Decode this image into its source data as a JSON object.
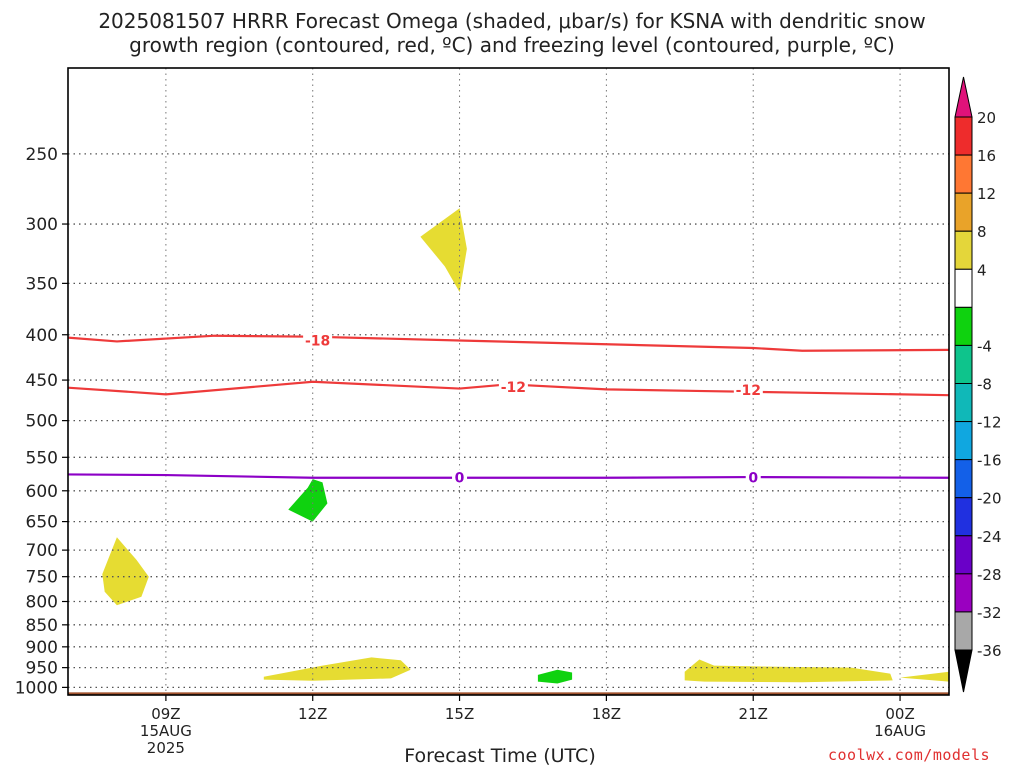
{
  "title_line1": "2025081507 HRRR Forecast Omega (shaded, μbar/s) for KSNA with dendritic snow",
  "title_line2": "growth region (contoured, red, ºC) and freezing level (contoured, purple, ºC)",
  "xlabel": "Forecast Time (UTC)",
  "watermark": "coolwx.com/models",
  "chart_data": {
    "type": "contour",
    "y_axis": {
      "label": "",
      "scale": "log",
      "inverted": true,
      "ylim": [
        1020,
        200
      ],
      "ticks": [
        250,
        300,
        350,
        400,
        450,
        500,
        550,
        600,
        650,
        700,
        750,
        800,
        850,
        900,
        950,
        1000
      ]
    },
    "x_axis": {
      "label": "Forecast Time (UTC)",
      "xlim_hours": [
        7,
        25
      ],
      "ticks": [
        {
          "h": 9,
          "lines": [
            "09Z",
            "15AUG",
            "2025"
          ]
        },
        {
          "h": 12,
          "lines": [
            "12Z"
          ]
        },
        {
          "h": 15,
          "lines": [
            "15Z"
          ]
        },
        {
          "h": 18,
          "lines": [
            "18Z"
          ]
        },
        {
          "h": 21,
          "lines": [
            "21Z"
          ]
        },
        {
          "h": 24,
          "lines": [
            "00Z",
            "16AUG"
          ]
        }
      ]
    },
    "grid": true,
    "contours": [
      {
        "name": "-18",
        "color": "#ee3a3a",
        "labels": [
          {
            "h": 12.1,
            "p": 406,
            "text": "-18"
          }
        ],
        "points": [
          [
            7,
            403
          ],
          [
            8,
            407
          ],
          [
            10,
            401
          ],
          [
            12,
            402
          ],
          [
            15,
            406
          ],
          [
            18,
            410
          ],
          [
            21,
            414
          ],
          [
            22,
            417
          ],
          [
            25,
            416
          ]
        ]
      },
      {
        "name": "-12",
        "color": "#ee3a3a",
        "labels": [
          {
            "h": 16.1,
            "p": 458,
            "text": "-12"
          },
          {
            "h": 20.9,
            "p": 462,
            "text": "-12"
          }
        ],
        "points": [
          [
            7,
            459
          ],
          [
            9,
            467
          ],
          [
            12,
            452
          ],
          [
            15,
            460
          ],
          [
            16,
            455
          ],
          [
            18,
            461
          ],
          [
            20,
            463
          ],
          [
            22,
            465
          ],
          [
            25,
            468
          ]
        ]
      },
      {
        "name": "0",
        "color": "#8c00c6",
        "labels": [
          {
            "h": 15,
            "p": 580,
            "text": "0"
          },
          {
            "h": 21,
            "p": 580,
            "text": "0"
          }
        ],
        "points": [
          [
            7,
            575
          ],
          [
            9,
            576
          ],
          [
            12,
            580
          ],
          [
            15,
            580
          ],
          [
            18,
            580
          ],
          [
            21,
            579
          ],
          [
            25,
            580
          ]
        ]
      }
    ],
    "shaded_regions": [
      {
        "value": "4 to 8",
        "color": "#e6dc32",
        "points": [
          [
            14.2,
            310
          ],
          [
            15.0,
            288
          ],
          [
            15.15,
            320
          ],
          [
            15.0,
            358
          ],
          [
            14.7,
            335
          ]
        ]
      },
      {
        "value": "4 to 8",
        "color": "#e6dc32",
        "points": [
          [
            7.7,
            745
          ],
          [
            8.0,
            677
          ],
          [
            8.4,
            718
          ],
          [
            8.65,
            750
          ],
          [
            8.5,
            790
          ],
          [
            8.0,
            808
          ],
          [
            7.75,
            780
          ]
        ]
      },
      {
        "value": "-8 to -4",
        "color": "#0fd20f",
        "points": [
          [
            11.5,
            630
          ],
          [
            11.9,
            595
          ],
          [
            12.0,
            582
          ],
          [
            12.2,
            587
          ],
          [
            12.3,
            620
          ],
          [
            12.0,
            650
          ]
        ]
      },
      {
        "value": "4 to 8",
        "color": "#e6dc32",
        "points": [
          [
            11.0,
            973
          ],
          [
            12.2,
            945
          ],
          [
            13.2,
            925
          ],
          [
            13.8,
            932
          ],
          [
            14.0,
            955
          ],
          [
            13.6,
            977
          ],
          [
            12.0,
            983
          ],
          [
            11.0,
            980
          ]
        ]
      },
      {
        "value": "-8 to -4",
        "color": "#0fd20f",
        "points": [
          [
            16.6,
            968
          ],
          [
            17.0,
            955
          ],
          [
            17.3,
            962
          ],
          [
            17.3,
            980
          ],
          [
            17.0,
            990
          ],
          [
            16.6,
            985
          ]
        ]
      },
      {
        "value": "4 to 8",
        "color": "#e6dc32",
        "points": [
          [
            19.6,
            960
          ],
          [
            19.9,
            930
          ],
          [
            20.2,
            945
          ],
          [
            21.5,
            948
          ],
          [
            23.0,
            950
          ],
          [
            23.8,
            965
          ],
          [
            23.85,
            982
          ],
          [
            22.0,
            987
          ],
          [
            20.0,
            985
          ],
          [
            19.6,
            982
          ]
        ]
      },
      {
        "value": "4 to 8",
        "color": "#e6dc32",
        "points": [
          [
            24.0,
            975
          ],
          [
            25.0,
            960
          ],
          [
            25.0,
            985
          ]
        ]
      }
    ],
    "terrain": {
      "color": "#a0522d",
      "surface_pressure": 1013
    },
    "colorbar": {
      "unit": "μbar/s",
      "labels": [
        "20",
        "16",
        "12",
        "8",
        "4",
        "-4",
        "-8",
        "-12",
        "-16",
        "-20",
        "-24",
        "-28",
        "-32",
        "-36"
      ],
      "colors": [
        "#ee2c2c",
        "#ff7733",
        "#e9a329",
        "#e4d63a",
        "#ffffff",
        "#0fd20f",
        "#0ec48c",
        "#10b8b8",
        "#10a7e0",
        "#1360e8",
        "#2030e0",
        "#6a00c8",
        "#9a00c0",
        "#a8a8a8"
      ],
      "top_arrow_color": "#e0127a",
      "bottom_arrow_color": "#000000"
    }
  }
}
